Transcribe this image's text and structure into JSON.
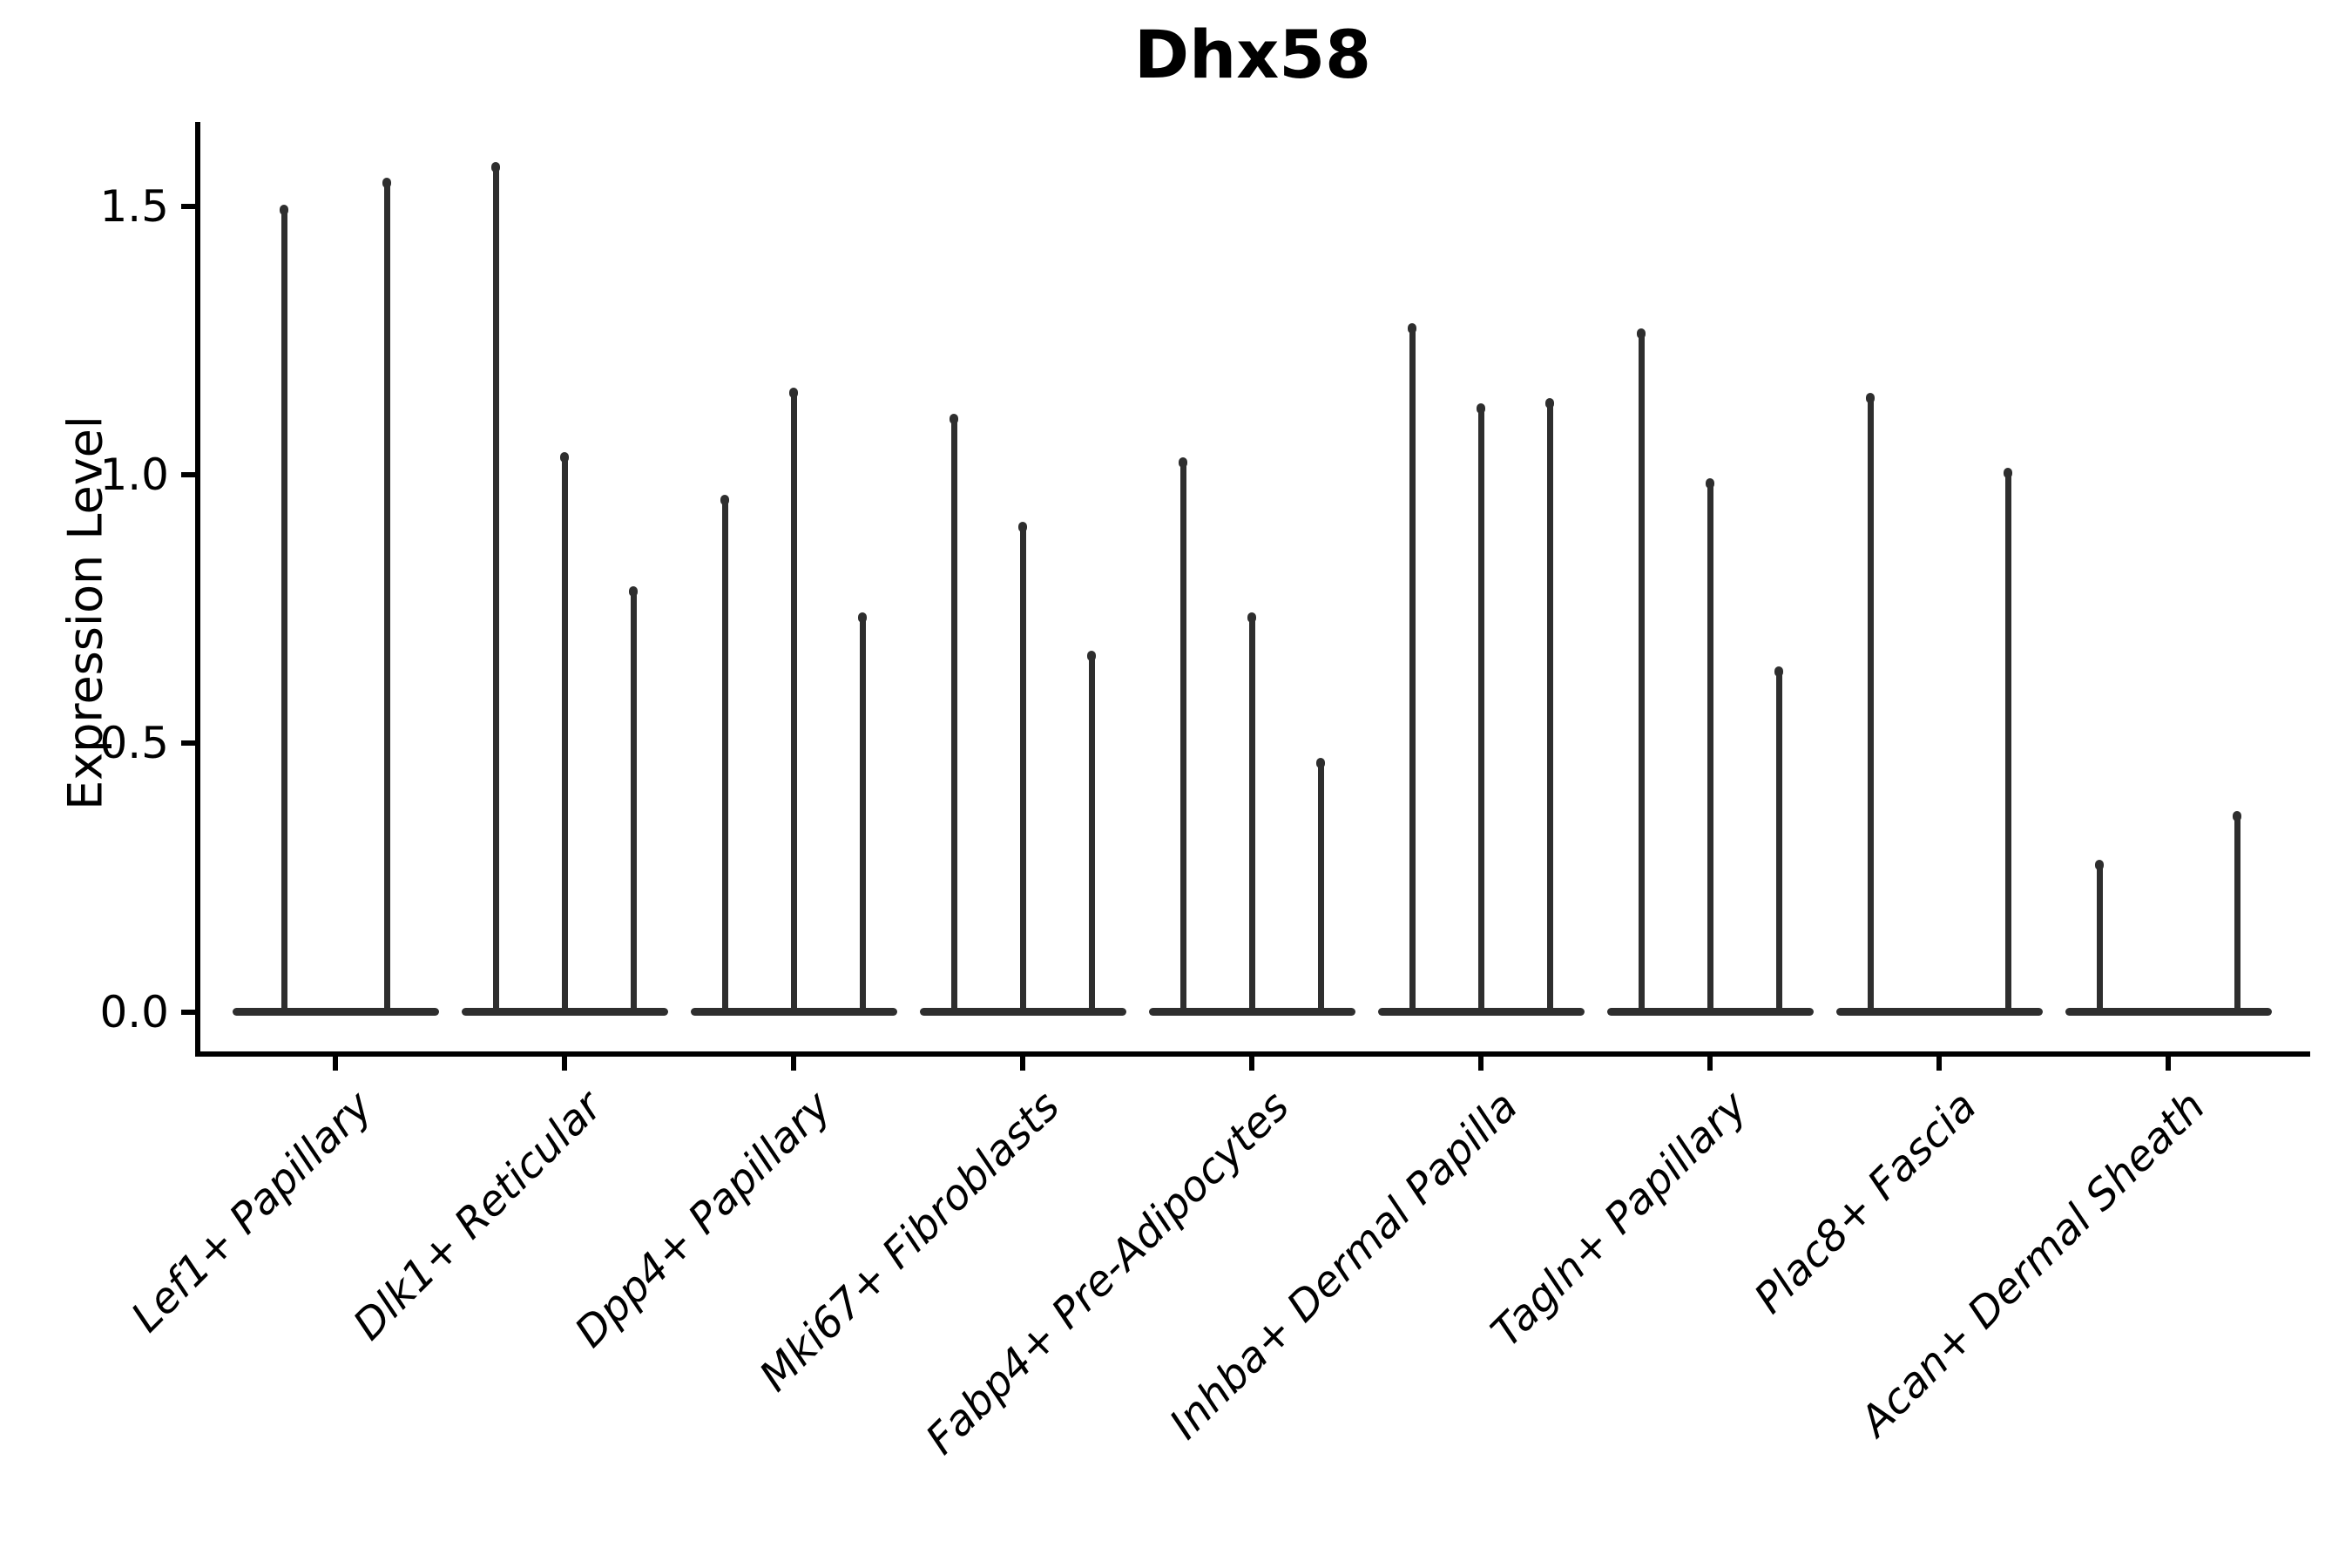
{
  "title": "Dhx58",
  "chart_data": {
    "type": "violin",
    "title": "Dhx58",
    "xlabel": "",
    "ylabel": "Expression Level",
    "ytick_labels": [
      "0.0",
      "0.5",
      "1.0",
      "1.5"
    ],
    "ytick_values": [
      0.0,
      0.5,
      1.0,
      1.5
    ],
    "ylim": [
      -0.08,
      1.66
    ],
    "grid": false,
    "legend_position": "none",
    "style_notes": "sparse single-cell violins: wide flat body at 0 with thin max-spikes, ink #2e2e2e",
    "categories": [
      "Lef1+ Papillary",
      "Dlk1+ Reticular",
      "Dpp4+ Papillary",
      "Mki67+ Fibroblasts",
      "Fabp4+ Pre-Adipocytes",
      "Inhba+ Dermal Papilla",
      "Tagln+ Papillary",
      "Plac8+ Fascia",
      "Acan+ Dermal Sheath"
    ],
    "groups": [
      {
        "category": "Lef1+ Papillary",
        "violins": [
          {
            "offset": -59,
            "max": 1.5
          },
          {
            "offset": 59,
            "max": 1.55
          }
        ]
      },
      {
        "category": "Dlk1+ Reticular",
        "violins": [
          {
            "offset": -79,
            "max": 1.58
          },
          {
            "offset": 0,
            "max": 1.04
          },
          {
            "offset": 79,
            "max": 0.79
          }
        ]
      },
      {
        "category": "Dpp4+ Papillary",
        "violins": [
          {
            "offset": -79,
            "max": 0.96
          },
          {
            "offset": 0,
            "max": 1.16
          },
          {
            "offset": 79,
            "max": 0.74
          }
        ]
      },
      {
        "category": "Mki67+ Fibroblasts",
        "violins": [
          {
            "offset": -79,
            "max": 1.11
          },
          {
            "offset": 0,
            "max": 0.91
          },
          {
            "offset": 79,
            "max": 0.67
          }
        ]
      },
      {
        "category": "Fabp4+ Pre-Adipocytes",
        "violins": [
          {
            "offset": -79,
            "max": 1.03
          },
          {
            "offset": 0,
            "max": 0.74
          },
          {
            "offset": 79,
            "max": 0.47
          }
        ]
      },
      {
        "category": "Inhba+ Dermal Papilla",
        "violins": [
          {
            "offset": -79,
            "max": 1.28
          },
          {
            "offset": 0,
            "max": 1.13
          },
          {
            "offset": 79,
            "max": 1.14
          }
        ]
      },
      {
        "category": "Tagln+ Papillary",
        "violins": [
          {
            "offset": -79,
            "max": 1.27
          },
          {
            "offset": 0,
            "max": 0.99
          },
          {
            "offset": 79,
            "max": 0.64
          }
        ]
      },
      {
        "category": "Plac8+ Fascia",
        "violins": [
          {
            "offset": -79,
            "max": 1.15
          },
          {
            "offset": 0,
            "max": 0.0
          },
          {
            "offset": 79,
            "max": 1.01
          }
        ]
      },
      {
        "category": "Acan+ Dermal Sheath",
        "violins": [
          {
            "offset": -79,
            "max": 0.28
          },
          {
            "offset": 0,
            "max": 0.0
          },
          {
            "offset": 79,
            "max": 0.37
          }
        ]
      }
    ],
    "colors": {
      "ink": "#000000",
      "violin": "#2e2e2e",
      "background": "#ffffff"
    }
  }
}
